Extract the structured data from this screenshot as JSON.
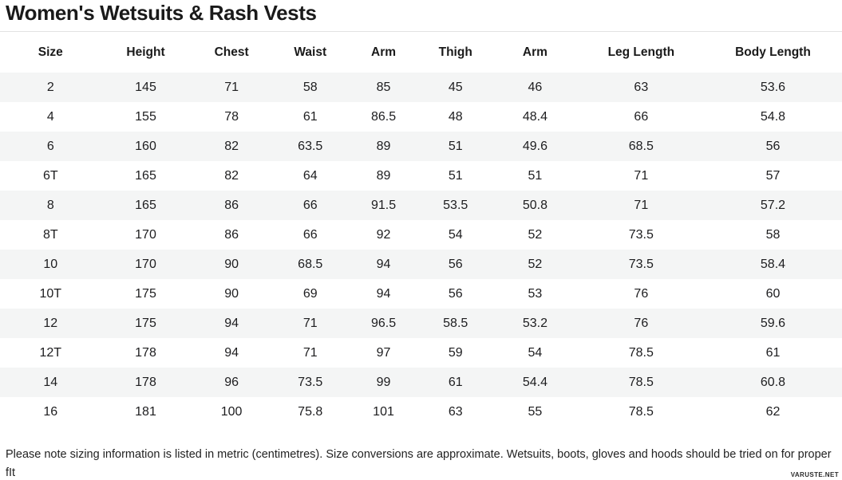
{
  "title": "Women's Wetsuits & Rash Vests",
  "table": {
    "columns": [
      "Size",
      "Height",
      "Chest",
      "Waist",
      "Arm",
      "Thigh",
      "Arm",
      "Leg Length",
      "Body Length"
    ],
    "rows": [
      [
        "2",
        "145",
        "71",
        "58",
        "85",
        "45",
        "46",
        "63",
        "53.6"
      ],
      [
        "4",
        "155",
        "78",
        "61",
        "86.5",
        "48",
        "48.4",
        "66",
        "54.8"
      ],
      [
        "6",
        "160",
        "82",
        "63.5",
        "89",
        "51",
        "49.6",
        "68.5",
        "56"
      ],
      [
        "6T",
        "165",
        "82",
        "64",
        "89",
        "51",
        "51",
        "71",
        "57"
      ],
      [
        "8",
        "165",
        "86",
        "66",
        "91.5",
        "53.5",
        "50.8",
        "71",
        "57.2"
      ],
      [
        "8T",
        "170",
        "86",
        "66",
        "92",
        "54",
        "52",
        "73.5",
        "58"
      ],
      [
        "10",
        "170",
        "90",
        "68.5",
        "94",
        "56",
        "52",
        "73.5",
        "58.4"
      ],
      [
        "10T",
        "175",
        "90",
        "69",
        "94",
        "56",
        "53",
        "76",
        "60"
      ],
      [
        "12",
        "175",
        "94",
        "71",
        "96.5",
        "58.5",
        "53.2",
        "76",
        "59.6"
      ],
      [
        "12T",
        "178",
        "94",
        "71",
        "97",
        "59",
        "54",
        "78.5",
        "61"
      ],
      [
        "14",
        "178",
        "96",
        "73.5",
        "99",
        "61",
        "54.4",
        "78.5",
        "60.8"
      ],
      [
        "16",
        "181",
        "100",
        "75.8",
        "101",
        "63",
        "55",
        "78.5",
        "62"
      ]
    ]
  },
  "footer": {
    "note": "Please note sizing information is listed in metric (centimetres). Size conversions are approximate. Wetsuits, boots, gloves and hoods should be tried on for proper fIt",
    "watermark": "VARUSTE.NET"
  },
  "colors": {
    "stripe": "#f4f5f5",
    "text": "#1d1d1f",
    "divider": "#e2e2e2"
  }
}
